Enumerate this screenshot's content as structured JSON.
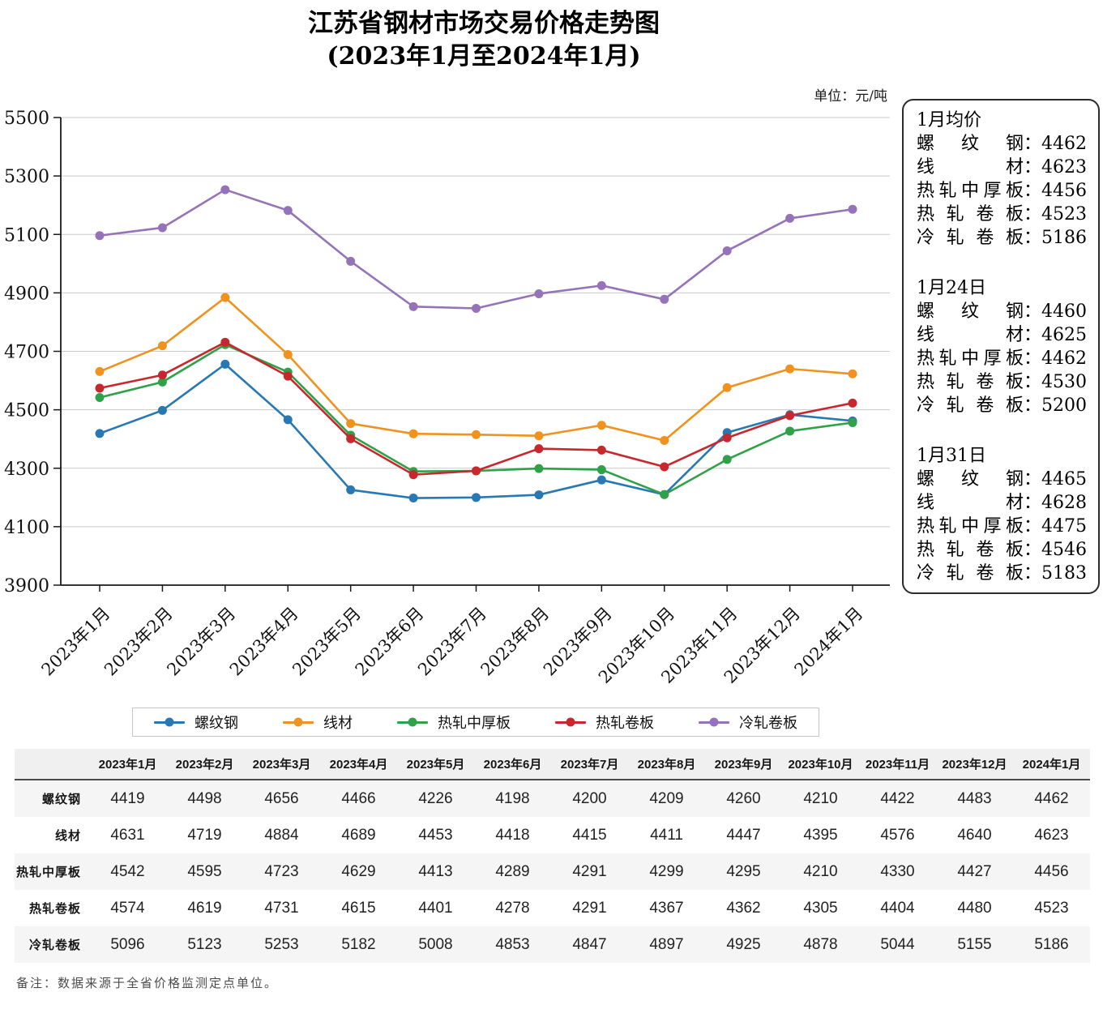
{
  "title": {
    "line1": "江苏省钢材市场交易价格走势图",
    "line2": "(2023年1月至2024年1月)"
  },
  "unit_label": "单位：元/吨",
  "chart_data": {
    "type": "line",
    "categories": [
      "2023年1月",
      "2023年2月",
      "2023年3月",
      "2023年4月",
      "2023年5月",
      "2023年6月",
      "2023年7月",
      "2023年8月",
      "2023年9月",
      "2023年10月",
      "2023年11月",
      "2023年12月",
      "2024年1月"
    ],
    "series": [
      {
        "name": "螺纹钢",
        "color": "#2878b4",
        "values": [
          4419,
          4498,
          4656,
          4466,
          4226,
          4198,
          4200,
          4209,
          4260,
          4210,
          4422,
          4483,
          4462
        ]
      },
      {
        "name": "线材",
        "color": "#f0921e",
        "values": [
          4631,
          4719,
          4884,
          4689,
          4453,
          4418,
          4415,
          4411,
          4447,
          4395,
          4576,
          4640,
          4623
        ]
      },
      {
        "name": "热轧中厚板",
        "color": "#2fa148",
        "values": [
          4542,
          4595,
          4723,
          4629,
          4413,
          4289,
          4291,
          4299,
          4295,
          4210,
          4330,
          4427,
          4456
        ]
      },
      {
        "name": "热轧卷板",
        "color": "#c8282d",
        "values": [
          4574,
          4619,
          4731,
          4615,
          4401,
          4278,
          4291,
          4367,
          4362,
          4305,
          4404,
          4480,
          4523
        ]
      },
      {
        "name": "冷轧卷板",
        "color": "#9673b9",
        "values": [
          5096,
          5123,
          5253,
          5182,
          5008,
          4853,
          4847,
          4897,
          4925,
          4878,
          5044,
          5155,
          5186
        ]
      }
    ],
    "ylim": [
      3900,
      5500
    ],
    "ytick_step": 200,
    "grid": "horizontal",
    "legend_position": "bottom"
  },
  "side_panel": {
    "sections": [
      {
        "heading": "1月均价",
        "rows": [
          {
            "label": "螺纹钢",
            "value": "4462"
          },
          {
            "label": "线材",
            "value": "4623"
          },
          {
            "label": "热轧中厚板",
            "value": "4456"
          },
          {
            "label": "热轧卷板",
            "value": "4523"
          },
          {
            "label": "冷轧卷板",
            "value": "5186"
          }
        ]
      },
      {
        "heading": "1月24日",
        "rows": [
          {
            "label": "螺纹钢",
            "value": "4460"
          },
          {
            "label": "线材",
            "value": "4625"
          },
          {
            "label": "热轧中厚板",
            "value": "4462"
          },
          {
            "label": "热轧卷板",
            "value": "4530"
          },
          {
            "label": "冷轧卷板",
            "value": "5200"
          }
        ]
      },
      {
        "heading": "1月31日",
        "rows": [
          {
            "label": "螺纹钢",
            "value": "4465"
          },
          {
            "label": "线材",
            "value": "4628"
          },
          {
            "label": "热轧中厚板",
            "value": "4475"
          },
          {
            "label": "热轧卷板",
            "value": "4546"
          },
          {
            "label": "冷轧卷板",
            "value": "5183"
          }
        ]
      }
    ]
  },
  "table": {
    "header": [
      "",
      "2023年1月",
      "2023年2月",
      "2023年3月",
      "2023年4月",
      "2023年5月",
      "2023年6月",
      "2023年7月",
      "2023年8月",
      "2023年9月",
      "2023年10月",
      "2023年11月",
      "2023年12月",
      "2024年1月"
    ],
    "rows": [
      {
        "label": "螺纹钢",
        "values": [
          4419,
          4498,
          4656,
          4466,
          4226,
          4198,
          4200,
          4209,
          4260,
          4210,
          4422,
          4483,
          4462
        ]
      },
      {
        "label": "线材",
        "values": [
          4631,
          4719,
          4884,
          4689,
          4453,
          4418,
          4415,
          4411,
          4447,
          4395,
          4576,
          4640,
          4623
        ]
      },
      {
        "label": "热轧中厚板",
        "values": [
          4542,
          4595,
          4723,
          4629,
          4413,
          4289,
          4291,
          4299,
          4295,
          4210,
          4330,
          4427,
          4456
        ]
      },
      {
        "label": "热轧卷板",
        "values": [
          4574,
          4619,
          4731,
          4615,
          4401,
          4278,
          4291,
          4367,
          4362,
          4305,
          4404,
          4480,
          4523
        ]
      },
      {
        "label": "冷轧卷板",
        "values": [
          5096,
          5123,
          5253,
          5182,
          5008,
          4853,
          4847,
          4897,
          4925,
          4878,
          5044,
          5155,
          5186
        ]
      }
    ]
  },
  "footnote": "备注：数据来源于全省价格监测定点单位。"
}
